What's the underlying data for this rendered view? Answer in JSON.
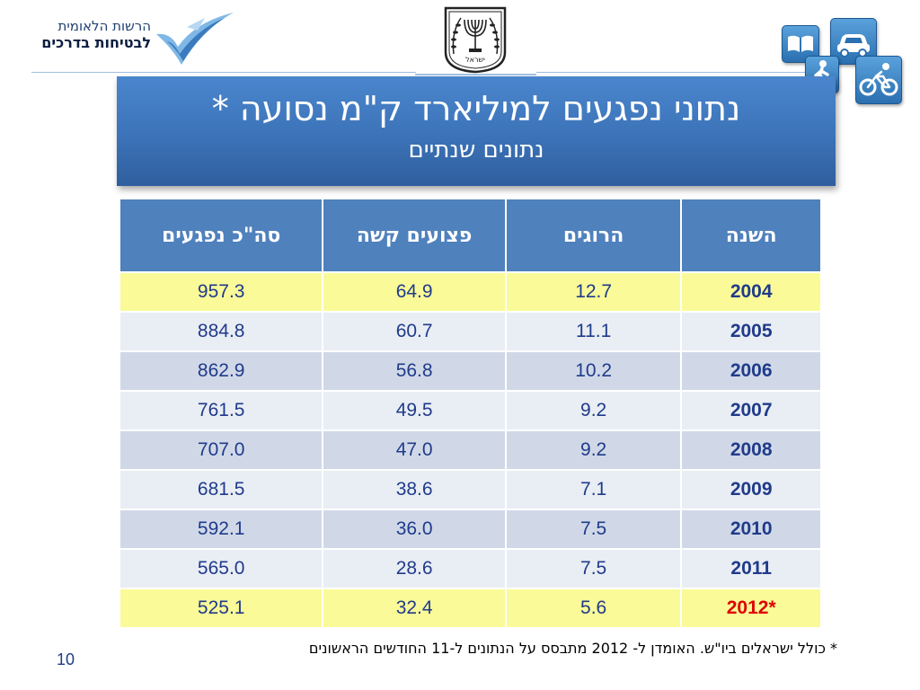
{
  "header": {
    "logo_line1": "הרשות הלאומית",
    "logo_line2": "לבטיחות בדרכים",
    "emblem_text": "ישראל"
  },
  "title": {
    "main": "נתוני נפגעים למיליארד ק\"מ נסועה *",
    "sub": "נתונים שנתיים"
  },
  "table": {
    "headers": [
      "השנה",
      "הרוגים",
      "פצועים קשה",
      "סה\"כ נפגעים"
    ],
    "rows": [
      {
        "year": "2004",
        "killed": "12.7",
        "serious": "64.9",
        "total": "957.3"
      },
      {
        "year": "2005",
        "killed": "11.1",
        "serious": "60.7",
        "total": "884.8"
      },
      {
        "year": "2006",
        "killed": "10.2",
        "serious": "56.8",
        "total": "862.9"
      },
      {
        "year": "2007",
        "killed": "9.2",
        "serious": "49.5",
        "total": "761.5"
      },
      {
        "year": "2008",
        "killed": "9.2",
        "serious": "47.0",
        "total": "707.0"
      },
      {
        "year": "2009",
        "killed": "7.1",
        "serious": "38.6",
        "total": "681.5"
      },
      {
        "year": "2010",
        "killed": "7.5",
        "serious": "36.0",
        "total": "592.1"
      },
      {
        "year": "2011",
        "killed": "7.5",
        "serious": "28.6",
        "total": "565.0"
      },
      {
        "year": "*2012",
        "killed": "5.6",
        "serious": "32.4",
        "total": "525.1"
      }
    ]
  },
  "footnote": "*  כולל ישראלים ביו\"ש. האומדן  ל- 2012 מתבסס על הנתונים ל-11 החודשים הראשונים",
  "page_number": "10",
  "colors": {
    "title_bg": "#3c73b8",
    "header_bg": "#4f81bd",
    "row_highlight": "#fafa98",
    "row_dark": "#d0d8e8",
    "row_light": "#e9edf4",
    "value_text": "#1f3b8a",
    "year_2012": "#e00000"
  },
  "icons": [
    "book-icon",
    "car-icon",
    "pedestrian-icon",
    "bicycle-icon"
  ]
}
